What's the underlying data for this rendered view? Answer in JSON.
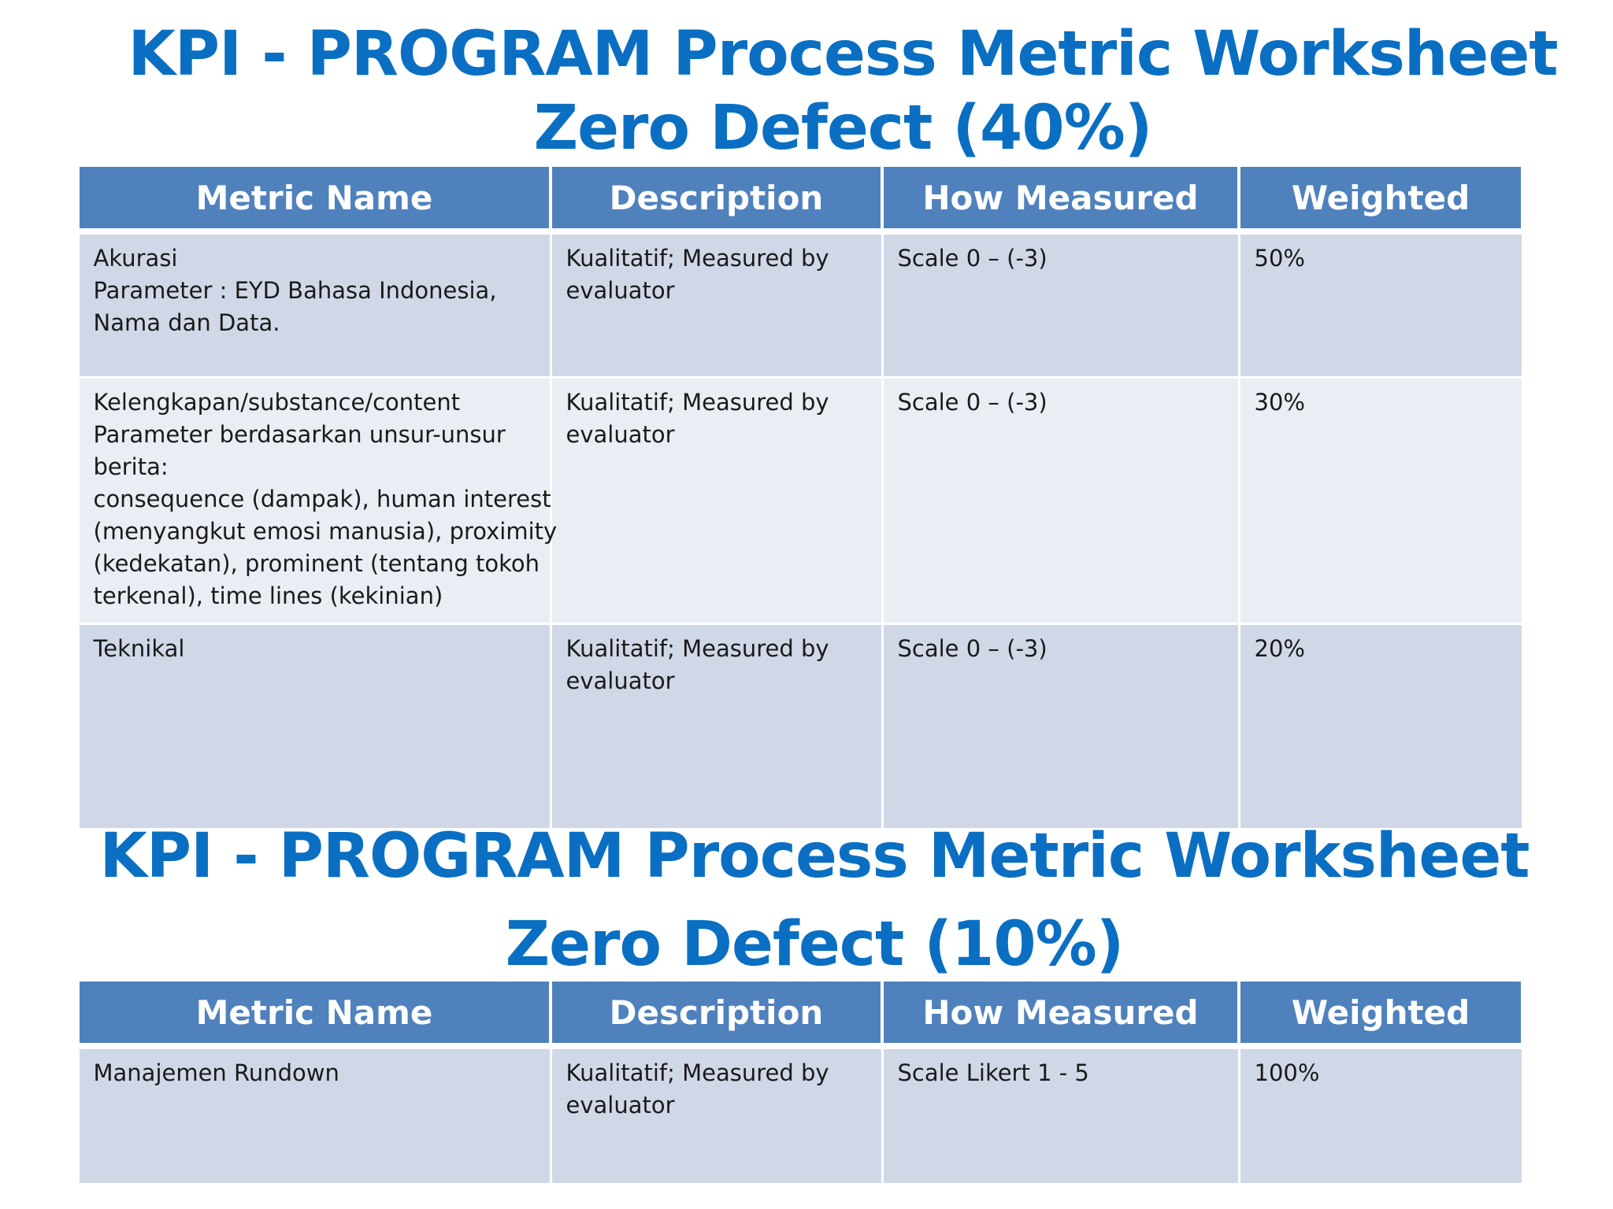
{
  "section1": {
    "title_line1": "KPI - PROGRAM Process Metric Worksheet",
    "title_line2": "Zero Defect (40%)",
    "headers": [
      "Metric Name",
      "Description",
      "How Measured",
      "Weighted"
    ],
    "rows": [
      {
        "metric_lines": [
          "Akurasi",
          "Parameter : EYD Bahasa Indonesia,",
          "Nama dan Data."
        ],
        "description_lines": [
          "Kualitatif; Measured by",
          "evaluator"
        ],
        "how_measured": "Scale 0 – (-3)",
        "weighted": "50%"
      },
      {
        "metric_lines": [
          "Kelengkapan/substance/content",
          "Parameter berdasarkan unsur-unsur",
          "berita:",
          "consequence (dampak), human interest",
          "(menyangkut emosi manusia), proximity",
          "(kedekatan), prominent (tentang tokoh",
          "terkenal), time lines (kekinian)"
        ],
        "description_lines": [
          "Kualitatif; Measured by",
          "evaluator"
        ],
        "how_measured": "Scale 0 – (-3)",
        "weighted": "30%"
      },
      {
        "metric_lines": [
          "Teknikal"
        ],
        "description_lines": [
          "Kualitatif; Measured by",
          "evaluator"
        ],
        "how_measured": "Scale 0 – (-3)",
        "weighted": "20%"
      }
    ]
  },
  "section2": {
    "title_line1": "KPI - PROGRAM Process Metric Worksheet",
    "title_line2": "Zero Defect (10%)",
    "headers": [
      "Metric Name",
      "Description",
      "How Measured",
      "Weighted"
    ],
    "rows": [
      {
        "metric_lines": [
          "Manajemen Rundown"
        ],
        "description_lines": [
          "Kualitatif; Measured by",
          "evaluator"
        ],
        "how_measured": "Scale Likert 1 - 5",
        "weighted": "100%"
      }
    ]
  },
  "colors": {
    "title": "#0a6fc2",
    "header_bg": "#4f81bd",
    "row_odd": "#d0d8e8",
    "row_even": "#e9edf4"
  }
}
